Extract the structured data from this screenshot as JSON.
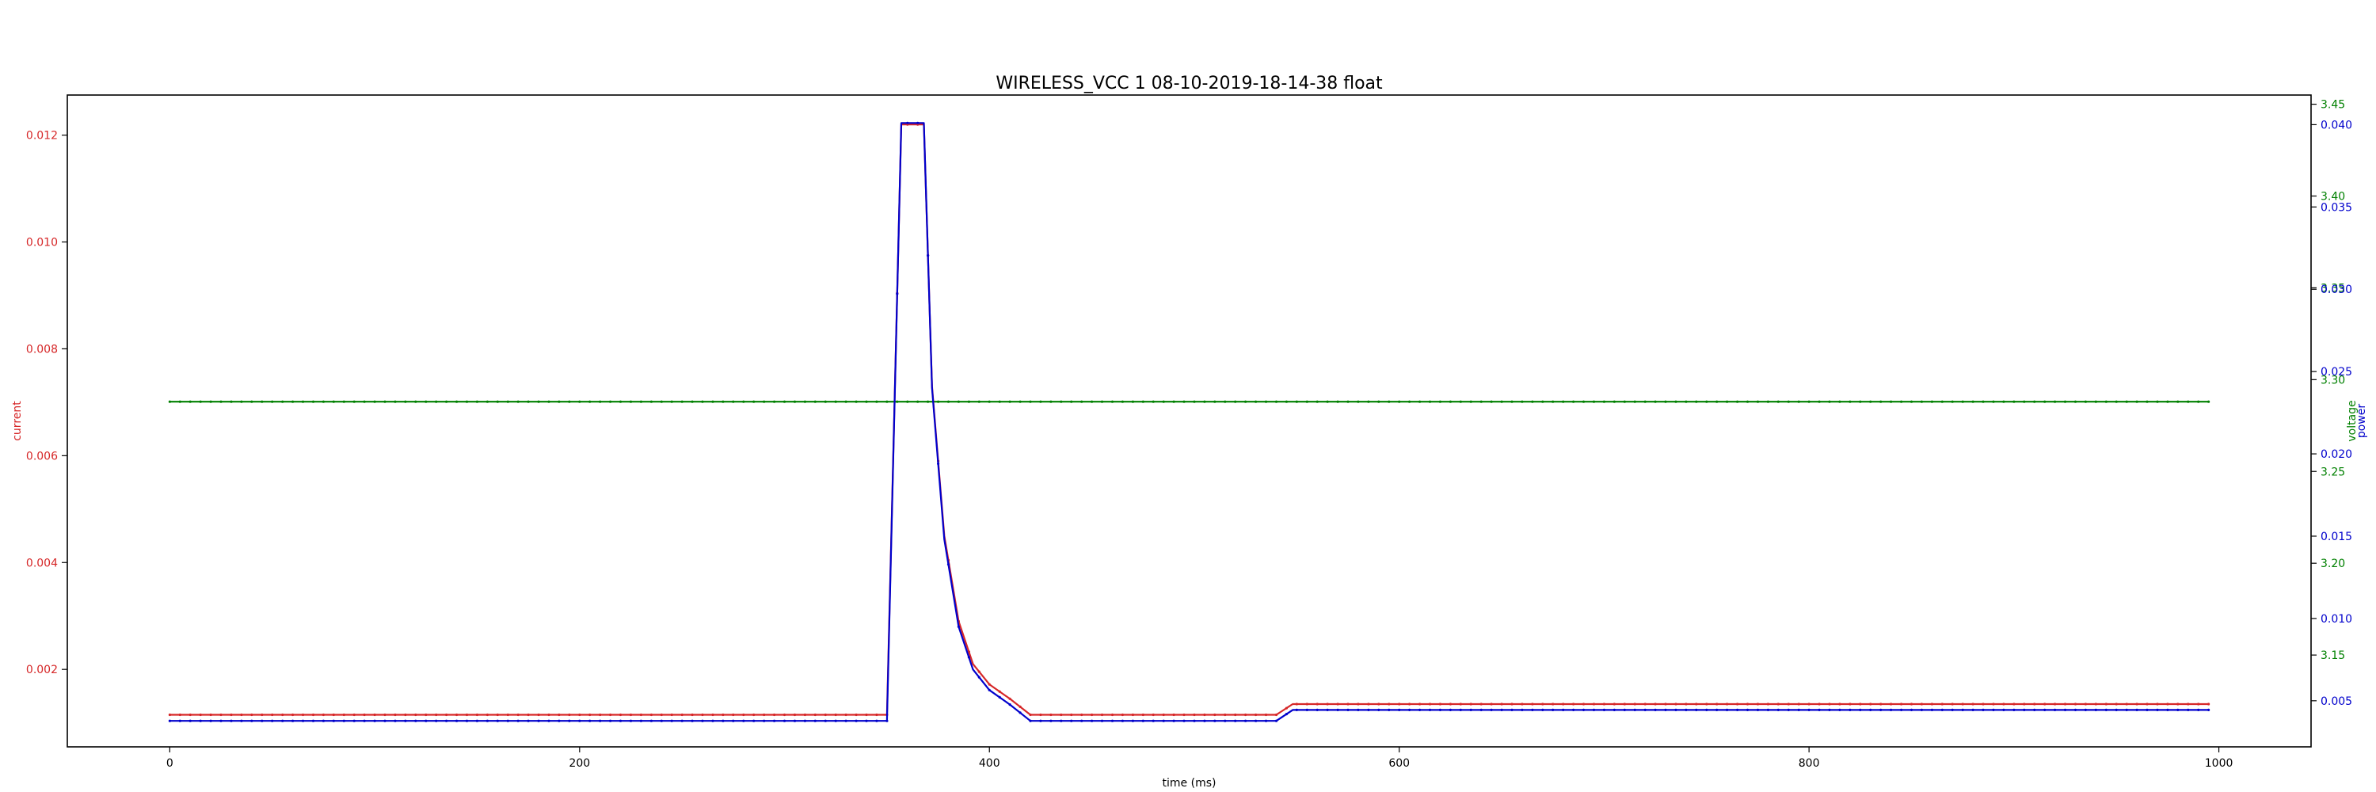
{
  "chart_data": {
    "type": "line",
    "title": "WIRELESS_VCC   1   08-10-2019-18-14-38   float",
    "xlabel": "time (ms)",
    "xlim": [
      -50,
      1045
    ],
    "x_ticks": [
      0,
      200,
      400,
      600,
      800,
      1000
    ],
    "axes": {
      "current": {
        "label": "current",
        "color": "#d62728",
        "side": "left",
        "ylim": [
          0.00055,
          0.01275
        ],
        "ticks": [
          0.002,
          0.004,
          0.006,
          0.008,
          0.01,
          0.012
        ],
        "tick_labels": [
          "0.002",
          "0.004",
          "0.006",
          "0.008",
          "0.010",
          "0.012"
        ]
      },
      "voltage": {
        "label": "voltage",
        "color": "#008000",
        "side": "right",
        "ylim": [
          3.1,
          3.455
        ],
        "ticks": [
          3.15,
          3.2,
          3.25,
          3.3,
          3.35,
          3.4,
          3.45
        ],
        "tick_labels": [
          "3.15",
          "3.20",
          "3.25",
          "3.30",
          "3.35",
          "3.40",
          "3.45"
        ]
      },
      "power": {
        "label": "power",
        "color": "#0000cc",
        "side": "right",
        "ylim": [
          0.0022,
          0.0418
        ],
        "ticks": [
          0.005,
          0.01,
          0.015,
          0.02,
          0.025,
          0.03,
          0.035,
          0.04
        ],
        "tick_labels": [
          "0.005",
          "0.010",
          "0.015",
          "0.020",
          "0.025",
          "0.030",
          "0.035",
          "0.040"
        ]
      }
    },
    "series": [
      {
        "axis": "voltage",
        "color": "#008000",
        "x": [
          0,
          995
        ],
        "y": [
          3.288,
          3.288
        ]
      },
      {
        "axis": "current",
        "color": "#d62728",
        "x": [
          0,
          350,
          357,
          363,
          368,
          372,
          378,
          385,
          392,
          400,
          410,
          420,
          540,
          548,
          995
        ],
        "y": [
          0.00115,
          0.00115,
          0.0122,
          0.0122,
          0.0122,
          0.0073,
          0.0045,
          0.0029,
          0.0021,
          0.00172,
          0.00145,
          0.00115,
          0.00115,
          0.00135,
          0.00135
        ]
      },
      {
        "axis": "power",
        "color": "#0000cc",
        "x": [
          0,
          350,
          357,
          363,
          368,
          372,
          378,
          385,
          392,
          400,
          410,
          420,
          540,
          548,
          995
        ],
        "y": [
          0.00378,
          0.00378,
          0.0401,
          0.0401,
          0.0401,
          0.024,
          0.0148,
          0.0095,
          0.0069,
          0.00565,
          0.00477,
          0.00378,
          0.00378,
          0.00444,
          0.00444
        ]
      }
    ],
    "grid": false
  }
}
